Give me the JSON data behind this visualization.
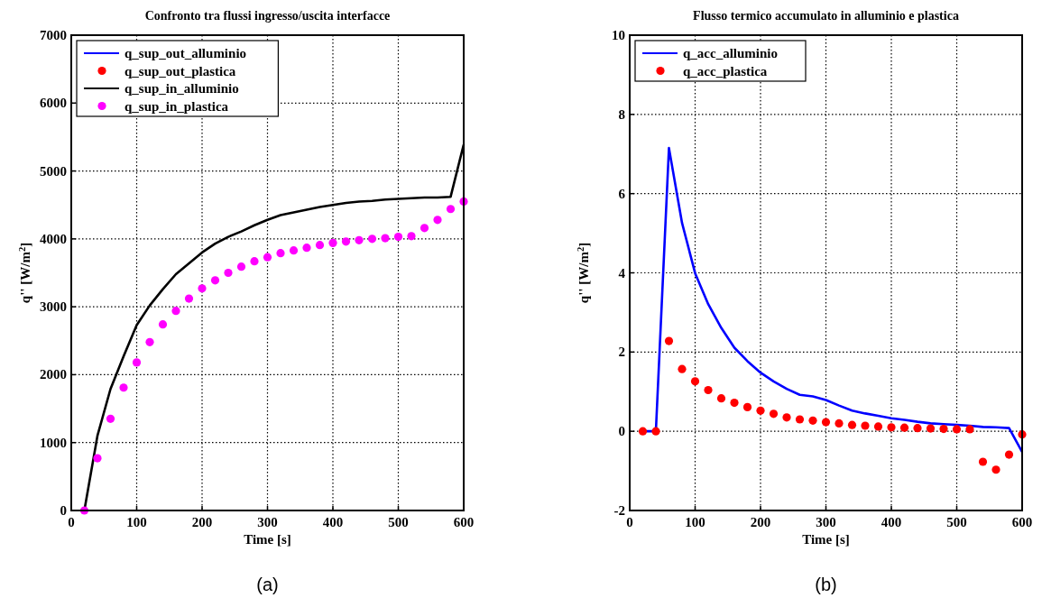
{
  "chart_data": [
    {
      "type": "line",
      "title": "Confronto tra flussi ingresso/uscita interfacce",
      "xlabel": "Time [s]",
      "ylabel": "q'' [W/m$^{2}$]",
      "x": [
        20,
        40,
        60,
        80,
        100,
        120,
        140,
        160,
        180,
        200,
        220,
        240,
        260,
        280,
        300,
        320,
        340,
        360,
        380,
        400,
        420,
        440,
        460,
        480,
        500,
        520,
        540,
        560,
        580,
        600
      ],
      "xlim": [
        0,
        600
      ],
      "xticks": [
        0,
        100,
        200,
        300,
        400,
        500,
        600
      ],
      "ylim": [
        0,
        7000
      ],
      "yticks": [
        0,
        1000,
        2000,
        3000,
        4000,
        5000,
        6000,
        7000
      ],
      "grid": true,
      "legend": "top left",
      "annotations": [
        "(a)"
      ],
      "series": [
        {
          "name": "q_sup_out_alluminio",
          "color": "#0000ff",
          "values": [
            null,
            null,
            null,
            null,
            null,
            null,
            null,
            null,
            null,
            null,
            null,
            null,
            null,
            null,
            null,
            null,
            null,
            null,
            null,
            null,
            null,
            null,
            null,
            null,
            null,
            null,
            null,
            null,
            null,
            null
          ]
        },
        {
          "name": "q_sup_out_plastica",
          "type": "scatter",
          "marker": "circle",
          "color": "#ff0000",
          "values": [
            null,
            null,
            null,
            null,
            null,
            null,
            null,
            null,
            null,
            null,
            null,
            null,
            null,
            null,
            null,
            null,
            null,
            null,
            null,
            null,
            null,
            null,
            null,
            null,
            null,
            null,
            null,
            null,
            null,
            null
          ]
        },
        {
          "name": "q_sup_in_alluminio",
          "color": "#000000",
          "values": [
            0,
            1100,
            1790,
            2270,
            2730,
            3020,
            3260,
            3480,
            3640,
            3800,
            3930,
            4030,
            4110,
            4200,
            4280,
            4350,
            4390,
            4430,
            4470,
            4500,
            4530,
            4550,
            4560,
            4580,
            4590,
            4600,
            4610,
            4610,
            4620,
            5390
          ]
        },
        {
          "name": "q_sup_in_plastica",
          "type": "scatter",
          "marker": "circle",
          "color": "#ff00ff",
          "values": [
            0,
            770,
            1350,
            1810,
            2180,
            2480,
            2740,
            2940,
            3120,
            3270,
            3390,
            3500,
            3590,
            3670,
            3730,
            3790,
            3830,
            3870,
            3910,
            3940,
            3960,
            3980,
            4000,
            4010,
            4030,
            4040,
            4160,
            4280,
            4440,
            4550
          ]
        }
      ]
    },
    {
      "type": "line",
      "title": "Flusso termico accumulato in alluminio e plastica",
      "xlabel": "Time [s]",
      "ylabel": "q'' [W/m$^{2}$]",
      "x": [
        20,
        40,
        60,
        80,
        100,
        120,
        140,
        160,
        180,
        200,
        220,
        240,
        260,
        280,
        300,
        320,
        340,
        360,
        380,
        400,
        420,
        440,
        460,
        480,
        500,
        520,
        540,
        560,
        580,
        600
      ],
      "xlim": [
        0,
        600
      ],
      "xticks": [
        0,
        100,
        200,
        300,
        400,
        500,
        600
      ],
      "ylim": [
        -2,
        10
      ],
      "yticks": [
        -2,
        0,
        2,
        4,
        6,
        8,
        10
      ],
      "grid": true,
      "legend": "top left",
      "annotations": [
        "(b)"
      ],
      "series": [
        {
          "name": "q_acc_alluminio",
          "color": "#0000ff",
          "values": [
            0,
            0,
            7.15,
            5.26,
            3.99,
            3.21,
            2.61,
            2.11,
            1.77,
            1.48,
            1.26,
            1.07,
            0.92,
            0.88,
            0.79,
            0.65,
            0.52,
            0.45,
            0.39,
            0.33,
            0.29,
            0.24,
            0.2,
            0.18,
            0.16,
            0.14,
            0.11,
            0.1,
            0.08,
            -0.52
          ]
        },
        {
          "name": "q_acc_plastica",
          "type": "scatter",
          "marker": "circle",
          "color": "#ff0000",
          "values": [
            0,
            0,
            2.28,
            1.57,
            1.26,
            1.04,
            0.83,
            0.72,
            0.61,
            0.52,
            0.44,
            0.35,
            0.3,
            0.27,
            0.23,
            0.2,
            0.16,
            0.14,
            0.12,
            0.1,
            0.09,
            0.08,
            0.07,
            0.06,
            0.05,
            0.05,
            -0.77,
            -0.97,
            -0.59,
            -0.08
          ]
        }
      ]
    }
  ]
}
